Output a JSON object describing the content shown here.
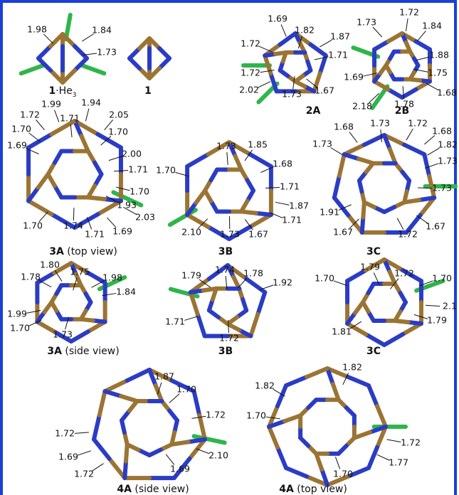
{
  "panels": [
    {
      "caption": {
        "bold": "1",
        "rest": "·He",
        "sub": "3"
      },
      "labels": [
        "1.98",
        "1.84",
        "1.73"
      ]
    },
    {
      "caption": {
        "bold": "1"
      },
      "labels": []
    },
    {
      "caption": {
        "bold": "2A"
      },
      "labels": [
        "1.69",
        "1.82",
        "1.87",
        "1.72",
        "1.71",
        "1.72",
        "2.02",
        "1.73",
        "1.67"
      ]
    },
    {
      "caption": {
        "bold": "2B"
      },
      "labels": [
        "1.73",
        "1.72",
        "1.84",
        "1.88",
        "1.69",
        "1.75",
        "2.18",
        "1.78",
        "1.68"
      ]
    },
    {
      "caption": {
        "bold": "3A",
        "rest": " (top view)"
      },
      "labels": [
        "1.72",
        "1.99",
        "1.94",
        "2.05",
        "1.70",
        "1.71",
        "1.70",
        "1.69",
        "2.00",
        "1.71",
        "1.70",
        "1.93",
        "2.03",
        "1.70",
        "1.74",
        "1.71",
        "1.69"
      ]
    },
    {
      "caption": {
        "bold": "3B"
      },
      "labels": [
        "1.73",
        "1.85",
        "1.70",
        "1.68",
        "1.71",
        "1.87",
        "2.10",
        "1.73",
        "1.67",
        "1.71"
      ]
    },
    {
      "caption": {
        "bold": "3C"
      },
      "labels": [
        "1.68",
        "1.73",
        "1.72",
        "1.68",
        "1.73",
        "1.82",
        "1.73",
        "1.91",
        "1.73",
        "1.67",
        "1.72",
        "1.67"
      ]
    },
    {
      "caption": {
        "bold": "3A",
        "rest": " (side view)"
      },
      "labels": [
        "1.78",
        "1.80",
        "1.75",
        "1.98",
        "1.84",
        "1.99",
        "1.70",
        "1.73"
      ]
    },
    {
      "caption": {
        "bold": "3B"
      },
      "labels": [
        "1.79",
        "1.74",
        "1.78",
        "1.92",
        "1.71",
        "1.72"
      ]
    },
    {
      "caption": {
        "bold": "3C"
      },
      "labels": [
        "1.70",
        "1.79",
        "1.72",
        "1.70",
        "2.1",
        "1.79",
        "1.81"
      ]
    },
    {
      "caption": {
        "bold": "4A",
        "rest": " (side view)"
      },
      "labels": [
        "1.87",
        "1.70",
        "1.72",
        "1.72",
        "1.69",
        "2.10",
        "1.72",
        "1.69"
      ]
    },
    {
      "caption": {
        "bold": "4A",
        "rest": " (top view)"
      },
      "labels": [
        "1.82",
        "1.82",
        "1.70",
        "1.72",
        "1.77",
        "1.70"
      ]
    }
  ]
}
